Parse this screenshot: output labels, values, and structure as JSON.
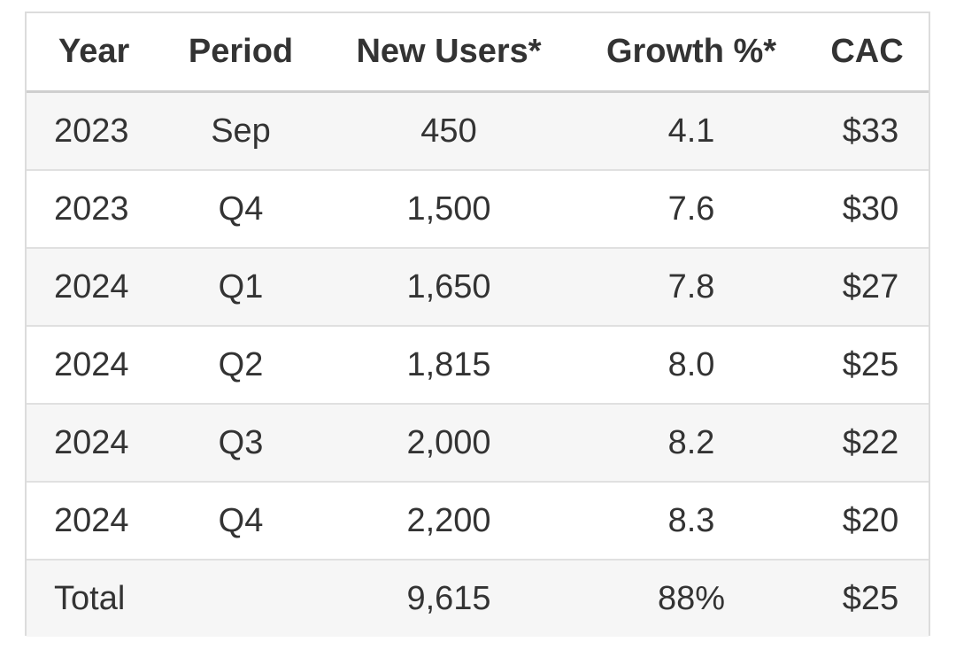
{
  "chart_data": {
    "type": "table",
    "columns": [
      "Year",
      "Period",
      "New Users*",
      "Growth %*",
      "CAC"
    ],
    "rows": [
      [
        "2023",
        "Sep",
        "450",
        "4.1",
        "$33"
      ],
      [
        "2023",
        "Q4",
        "1,500",
        "7.6",
        "$30"
      ],
      [
        "2024",
        "Q1",
        "1,650",
        "7.8",
        "$27"
      ],
      [
        "2024",
        "Q2",
        "1,815",
        "8.0",
        "$25"
      ],
      [
        "2024",
        "Q3",
        "2,000",
        "8.2",
        "$22"
      ],
      [
        "2024",
        "Q4",
        "2,200",
        "8.3",
        "$20"
      ],
      [
        "Total",
        "",
        "9,615",
        "88%",
        "$25"
      ]
    ]
  },
  "colors": {
    "header_border": "#cfcfcf",
    "row_border": "#e0e0e0",
    "shaded_row": "#f6f6f6",
    "text": "#333333",
    "outer_border": "#dcdcdc"
  }
}
